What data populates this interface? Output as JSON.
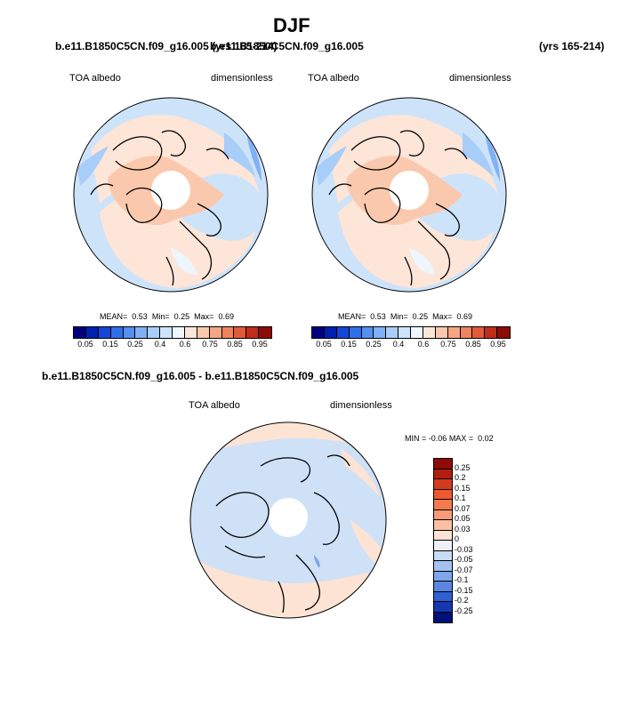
{
  "header": {
    "title": "DJF",
    "case_left": "b.e11.B1850C5CN.f09_g16.005 (yrs 165-214)",
    "case_overlap": "b.e11.B1850C5CN.f09_g16.005",
    "case_right_years": "(yrs 165-214)",
    "diff_title": "b.e11.B1850C5CN.f09_g16.005 - b.e11.B1850C5CN.f09_g16.005"
  },
  "panels": {
    "left": {
      "variable": "TOA albedo",
      "units": "dimensionless",
      "stats_mean_label": "MEAN=",
      "stats_mean": "0.53",
      "stats_min_label": "Min=",
      "stats_min": "0.25",
      "stats_max_label": "Max=",
      "stats_max": "0.69"
    },
    "right": {
      "variable": "TOA albedo",
      "units": "dimensionless",
      "stats_mean_label": "MEAN=",
      "stats_mean": "0.53",
      "stats_min_label": "Min=",
      "stats_min": "0.25",
      "stats_max_label": "Max=",
      "stats_max": "0.69"
    },
    "diff": {
      "variable": "TOA albedo",
      "units": "dimensionless",
      "min_label": "MIN =",
      "min": "-0.06",
      "max_label": "MAX =",
      "max": "0.02"
    }
  },
  "colorbar_main": {
    "labels": [
      "0.05",
      "0.15",
      "0.25",
      "0.4",
      "0.6",
      "0.75",
      "0.85",
      "0.95"
    ],
    "colors": [
      "#00007f",
      "#0020b0",
      "#1446d8",
      "#2e6ee8",
      "#5590f0",
      "#80b0f5",
      "#a8cdf8",
      "#cde3fa",
      "#eef6fd",
      "#fde5d8",
      "#fac8ad",
      "#f5a683",
      "#ef835e",
      "#e25a38",
      "#c02d1b",
      "#8e0b06"
    ]
  },
  "colorbar_diff": {
    "labels": [
      "0.25",
      "0.2",
      "0.15",
      "0.1",
      "0.07",
      "0.05",
      "0.03",
      "0",
      "-0.03",
      "-0.05",
      "-0.07",
      "-0.1",
      "-0.15",
      "-0.2",
      "-0.25"
    ],
    "colors": [
      "#8e0b06",
      "#b01e10",
      "#d43a1e",
      "#ee5a2e",
      "#f57a4e",
      "#f89c78",
      "#fbc0a4",
      "#fde3d4",
      "#eef2f7",
      "#c8dcf5",
      "#a2c2f0",
      "#7ea6ea",
      "#5886e2",
      "#2f60d2",
      "#1438b0",
      "#00107a"
    ]
  }
}
